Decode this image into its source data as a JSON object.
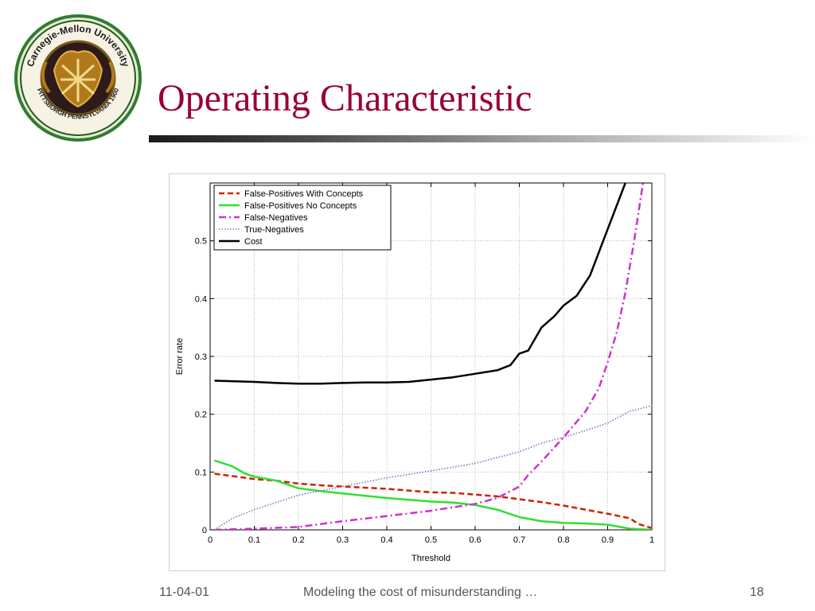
{
  "slide": {
    "title": "Operating Characteristic",
    "title_color": "#990033",
    "logo": {
      "name": "Carnegie Mellon University seal",
      "text_top": "Carnegie-Mellon University",
      "text_bottom": "PITTSBURGH PENNSYLVANIA 1900"
    }
  },
  "footer": {
    "date": "11-04-01",
    "center": "Modeling the cost of misunderstanding …",
    "page": "18"
  },
  "chart_data": {
    "type": "line",
    "title": "",
    "xlabel": "Threshold",
    "ylabel": "Error rate",
    "xlim": [
      0,
      1
    ],
    "ylim": [
      0,
      0.6
    ],
    "grid": true,
    "legend_position": "top-left",
    "x_ticks": [
      "0",
      "0.1",
      "0.2",
      "0.3",
      "0.4",
      "0.5",
      "0.6",
      "0.7",
      "0.8",
      "0.9",
      "1"
    ],
    "y_ticks": [
      "0",
      "0.1",
      "0.2",
      "0.3",
      "0.4",
      "0.5"
    ],
    "series": [
      {
        "name": "False-Positives With Concepts",
        "color": "#cc2200",
        "style": "dashed",
        "points": [
          [
            0.01,
            0.097
          ],
          [
            0.05,
            0.093
          ],
          [
            0.1,
            0.088
          ],
          [
            0.15,
            0.085
          ],
          [
            0.2,
            0.08
          ],
          [
            0.25,
            0.077
          ],
          [
            0.3,
            0.075
          ],
          [
            0.35,
            0.073
          ],
          [
            0.4,
            0.071
          ],
          [
            0.45,
            0.068
          ],
          [
            0.5,
            0.065
          ],
          [
            0.55,
            0.064
          ],
          [
            0.6,
            0.061
          ],
          [
            0.65,
            0.058
          ],
          [
            0.7,
            0.053
          ],
          [
            0.75,
            0.048
          ],
          [
            0.8,
            0.042
          ],
          [
            0.85,
            0.035
          ],
          [
            0.9,
            0.028
          ],
          [
            0.95,
            0.02
          ],
          [
            0.97,
            0.01
          ],
          [
            1.0,
            0.003
          ]
        ]
      },
      {
        "name": "False-Positives No Concepts",
        "color": "#33dd33",
        "style": "solid",
        "points": [
          [
            0.01,
            0.12
          ],
          [
            0.05,
            0.11
          ],
          [
            0.08,
            0.097
          ],
          [
            0.1,
            0.092
          ],
          [
            0.15,
            0.085
          ],
          [
            0.2,
            0.072
          ],
          [
            0.25,
            0.067
          ],
          [
            0.3,
            0.063
          ],
          [
            0.35,
            0.059
          ],
          [
            0.4,
            0.055
          ],
          [
            0.45,
            0.052
          ],
          [
            0.5,
            0.049
          ],
          [
            0.55,
            0.047
          ],
          [
            0.6,
            0.043
          ],
          [
            0.65,
            0.035
          ],
          [
            0.7,
            0.022
          ],
          [
            0.75,
            0.015
          ],
          [
            0.8,
            0.012
          ],
          [
            0.85,
            0.011
          ],
          [
            0.9,
            0.009
          ],
          [
            0.95,
            0.002
          ],
          [
            1.0,
            0.0
          ]
        ]
      },
      {
        "name": "False-Negatives",
        "color": "#cc33cc",
        "style": "dashdot",
        "points": [
          [
            0.01,
            0.0
          ],
          [
            0.1,
            0.002
          ],
          [
            0.2,
            0.005
          ],
          [
            0.3,
            0.015
          ],
          [
            0.4,
            0.024
          ],
          [
            0.5,
            0.033
          ],
          [
            0.6,
            0.045
          ],
          [
            0.65,
            0.055
          ],
          [
            0.7,
            0.075
          ],
          [
            0.72,
            0.095
          ],
          [
            0.75,
            0.118
          ],
          [
            0.8,
            0.16
          ],
          [
            0.85,
            0.205
          ],
          [
            0.88,
            0.245
          ],
          [
            0.9,
            0.29
          ],
          [
            0.92,
            0.34
          ],
          [
            0.94,
            0.41
          ],
          [
            0.96,
            0.5
          ],
          [
            0.98,
            0.6
          ]
        ]
      },
      {
        "name": "True-Negatives",
        "color": "#7777bb",
        "style": "dotted",
        "points": [
          [
            0.01,
            0.0
          ],
          [
            0.05,
            0.02
          ],
          [
            0.1,
            0.035
          ],
          [
            0.2,
            0.06
          ],
          [
            0.3,
            0.075
          ],
          [
            0.4,
            0.09
          ],
          [
            0.5,
            0.102
          ],
          [
            0.6,
            0.115
          ],
          [
            0.7,
            0.135
          ],
          [
            0.75,
            0.15
          ],
          [
            0.8,
            0.16
          ],
          [
            0.85,
            0.172
          ],
          [
            0.9,
            0.185
          ],
          [
            0.95,
            0.205
          ],
          [
            1.0,
            0.215
          ]
        ]
      },
      {
        "name": "Cost",
        "color": "#000000",
        "style": "solid",
        "points": [
          [
            0.01,
            0.258
          ],
          [
            0.1,
            0.256
          ],
          [
            0.15,
            0.254
          ],
          [
            0.2,
            0.253
          ],
          [
            0.25,
            0.253
          ],
          [
            0.3,
            0.254
          ],
          [
            0.35,
            0.255
          ],
          [
            0.4,
            0.255
          ],
          [
            0.45,
            0.256
          ],
          [
            0.5,
            0.26
          ],
          [
            0.55,
            0.264
          ],
          [
            0.6,
            0.27
          ],
          [
            0.65,
            0.276
          ],
          [
            0.68,
            0.285
          ],
          [
            0.7,
            0.305
          ],
          [
            0.72,
            0.31
          ],
          [
            0.75,
            0.35
          ],
          [
            0.78,
            0.37
          ],
          [
            0.8,
            0.388
          ],
          [
            0.83,
            0.405
          ],
          [
            0.86,
            0.44
          ],
          [
            0.88,
            0.48
          ],
          [
            0.9,
            0.52
          ],
          [
            0.92,
            0.56
          ],
          [
            0.94,
            0.6
          ]
        ]
      }
    ]
  }
}
